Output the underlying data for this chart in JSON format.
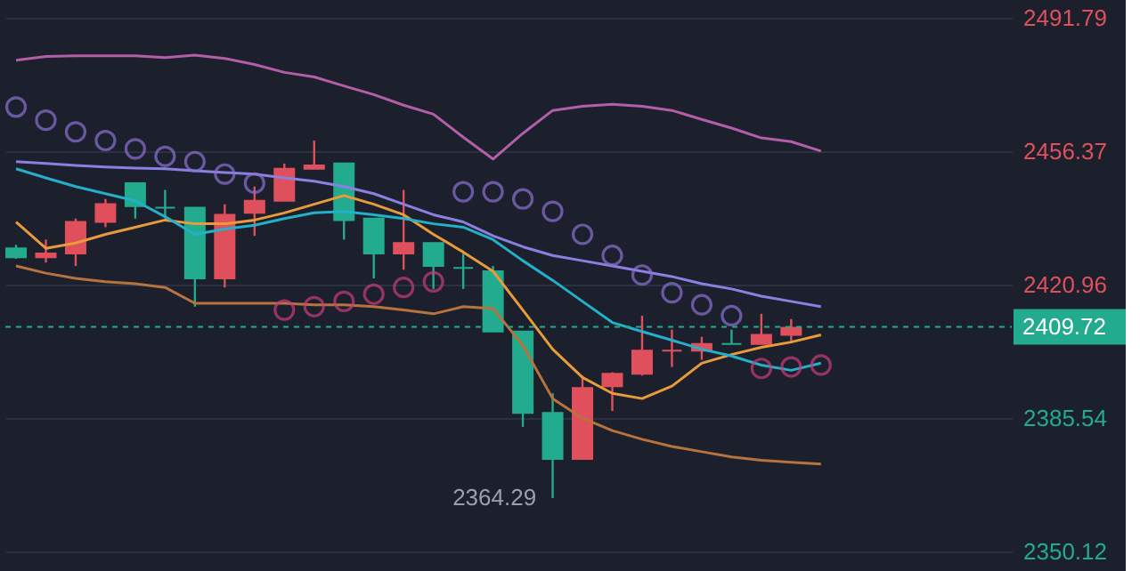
{
  "chart_data": {
    "type": "candlestick",
    "categories": [
      null,
      null,
      null,
      null,
      null,
      null,
      null,
      null,
      null,
      null,
      null,
      null,
      null,
      null,
      null,
      null,
      null,
      null,
      null,
      null,
      null,
      null,
      null,
      null,
      null,
      null,
      null,
      null
    ],
    "ohlc": [
      [
        2430.6,
        2431.5,
        2427.8,
        2428.2
      ],
      [
        2428.2,
        2432.9,
        2426.8,
        2429.2
      ],
      [
        2429.2,
        2438.5,
        2425.9,
        2437.6
      ],
      [
        2437.6,
        2443.7,
        2436.2,
        2442.3
      ],
      [
        2447.9,
        2447.9,
        2438.5,
        2441.8
      ],
      [
        2441.4,
        2446.1,
        2438.5,
        2441.4
      ],
      [
        2441.4,
        2441.4,
        2415.1,
        2422.6
      ],
      [
        2422.6,
        2442.3,
        2420.2,
        2439.5
      ],
      [
        2440.0,
        2447.0,
        2433.9,
        2443.2
      ],
      [
        2443.2,
        2453.1,
        2443.2,
        2451.7
      ],
      [
        2451.7,
        2459.2,
        2451.7,
        2452.6
      ],
      [
        2453.1,
        2453.1,
        2432.9,
        2438.1
      ],
      [
        2438.5,
        2438.5,
        2422.6,
        2429.2
      ],
      [
        2429.2,
        2446.1,
        2424.9,
        2432.0
      ],
      [
        2432.0,
        2432.0,
        2419.8,
        2425.9
      ],
      [
        2425.4,
        2429.2,
        2419.8,
        2425.4
      ],
      [
        2424.5,
        2425.9,
        2408.5,
        2408.5
      ],
      [
        2408.5,
        2408.5,
        2383.2,
        2386.9
      ],
      [
        2386.9,
        2392.1,
        2364.29,
        2374.7
      ],
      [
        2374.7,
        2396.8,
        2374.7,
        2393.5
      ],
      [
        2394.0,
        2397.7,
        2387.4,
        2397.3
      ],
      [
        2397.3,
        2412.7,
        2396.8,
        2403.4
      ],
      [
        2403.4,
        2409.0,
        2399.1,
        2403.4
      ],
      [
        2403.4,
        2407.1,
        2401.0,
        2405.2
      ],
      [
        2405.2,
        2409.0,
        2405.2,
        2405.2
      ],
      [
        2405.2,
        2413.2,
        2405.2,
        2407.6
      ],
      [
        2407.6,
        2411.8,
        2405.7,
        2409.5
      ],
      null
    ],
    "colors": [
      "#22ab8e",
      "#e0505c",
      "#e0505c",
      "#e0505c",
      "#22ab8e",
      "#22ab8e",
      "#22ab8e",
      "#e0505c",
      "#e0505c",
      "#e0505c",
      "#e0505c",
      "#22ab8e",
      "#22ab8e",
      "#e0505c",
      "#22ab8e",
      "#22ab8e",
      "#22ab8e",
      "#22ab8e",
      "#22ab8e",
      "#e0505c",
      "#e0505c",
      "#e0505c",
      "#e0505c",
      "#e0505c",
      "#22ab8e",
      "#e0505c",
      "#e0505c",
      null
    ],
    "series": [
      {
        "type": "line",
        "line_style": "solid",
        "color": "#b35ea6",
        "values": [
          2480.5,
          2481.5,
          2481.7,
          2481.7,
          2481.7,
          2481.2,
          2481.9,
          2481.0,
          2479.4,
          2477.3,
          2476.1,
          2473.7,
          2471.4,
          2468.6,
          2466.2,
          2460.1,
          2454.3,
          2461.1,
          2467.2,
          2468.3,
          2468.8,
          2468.3,
          2467.2,
          2464.8,
          2462.5,
          2459.9,
          2458.9,
          2456.4
        ]
      },
      {
        "type": "line",
        "line_style": "solid",
        "color": "#8b80e2",
        "values": [
          2453.6,
          2453.1,
          2452.6,
          2452.2,
          2451.9,
          2451.7,
          2451.2,
          2450.7,
          2450.3,
          2449.3,
          2448.4,
          2447.0,
          2445.1,
          2442.3,
          2439.5,
          2437.6,
          2433.9,
          2431.0,
          2428.7,
          2427.3,
          2425.9,
          2424.5,
          2423.1,
          2421.2,
          2419.8,
          2417.9,
          2416.5,
          2415.1
        ]
      },
      {
        "type": "line",
        "line_style": "solid",
        "color": "#b8723e",
        "values": [
          2425.9,
          2424.0,
          2422.6,
          2421.7,
          2421.2,
          2420.2,
          2416.0,
          2416.0,
          2416.0,
          2416.0,
          2415.6,
          2415.6,
          2415.1,
          2414.2,
          2413.2,
          2415.1,
          2414.6,
          2404.8,
          2390.7,
          2385.5,
          2382.2,
          2379.9,
          2378.0,
          2376.6,
          2375.2,
          2374.3,
          2373.8,
          2373.3
        ]
      },
      {
        "type": "line",
        "line_style": "solid",
        "color": "#e89b3a",
        "values": [
          2437.6,
          2430.6,
          2432.0,
          2434.3,
          2436.2,
          2438.1,
          2437.1,
          2437.1,
          2438.1,
          2440.0,
          2442.3,
          2444.6,
          2442.3,
          2439.5,
          2434.3,
          2429.6,
          2424.5,
          2414.2,
          2403.8,
          2396.3,
          2392.1,
          2390.7,
          2394.0,
          2400.1,
          2402.4,
          2404.3,
          2405.7,
          2407.6
        ]
      },
      {
        "type": "line",
        "line_style": "solid",
        "color": "#23b0c8",
        "values": [
          2451.7,
          2449.3,
          2447.0,
          2445.1,
          2443.2,
          2439.0,
          2434.3,
          2435.7,
          2436.7,
          2438.5,
          2440.0,
          2440.4,
          2439.5,
          2438.5,
          2437.1,
          2436.2,
          2432.9,
          2427.3,
          2422.1,
          2416.5,
          2410.9,
          2408.5,
          2406.2,
          2403.8,
          2402.0,
          2399.6,
          2398.2,
          2400.1
        ]
      },
      {
        "type": "scatter",
        "marker": "circle",
        "color": "#8c72d4",
        "values": [
          2468.1,
          2464.6,
          2461.5,
          2459.2,
          2457.0,
          2455.0,
          2453.6,
          2450.3,
          2447.9,
          null,
          null,
          null,
          null,
          null,
          null,
          2445.6,
          2445.6,
          2443.7,
          2440.4,
          2434.3,
          2428.7,
          2423.5,
          2418.8,
          2415.6,
          2412.7,
          null,
          null,
          null
        ]
      },
      {
        "type": "scatter",
        "marker": "circle",
        "color": "#c93c7e",
        "values": [
          null,
          null,
          null,
          null,
          null,
          null,
          null,
          null,
          null,
          2414.2,
          2415.1,
          2416.5,
          2418.4,
          2420.2,
          2421.7,
          null,
          null,
          null,
          null,
          null,
          null,
          null,
          null,
          null,
          null,
          2398.7,
          2399.1,
          2399.6
        ]
      }
    ],
    "ylim": [
      2350.12,
      2491.79
    ],
    "yticks": [
      2350.12,
      2385.54,
      2420.96,
      2456.37,
      2491.79
    ],
    "grid": "y",
    "tick_labels": "y",
    "ref_lines": [
      {
        "axis": "y",
        "value": 2409.72,
        "label": "2409.72",
        "color": "#22ab8e",
        "line_style": "dashed"
      }
    ],
    "annotations": [
      "2364.29"
    ]
  }
}
